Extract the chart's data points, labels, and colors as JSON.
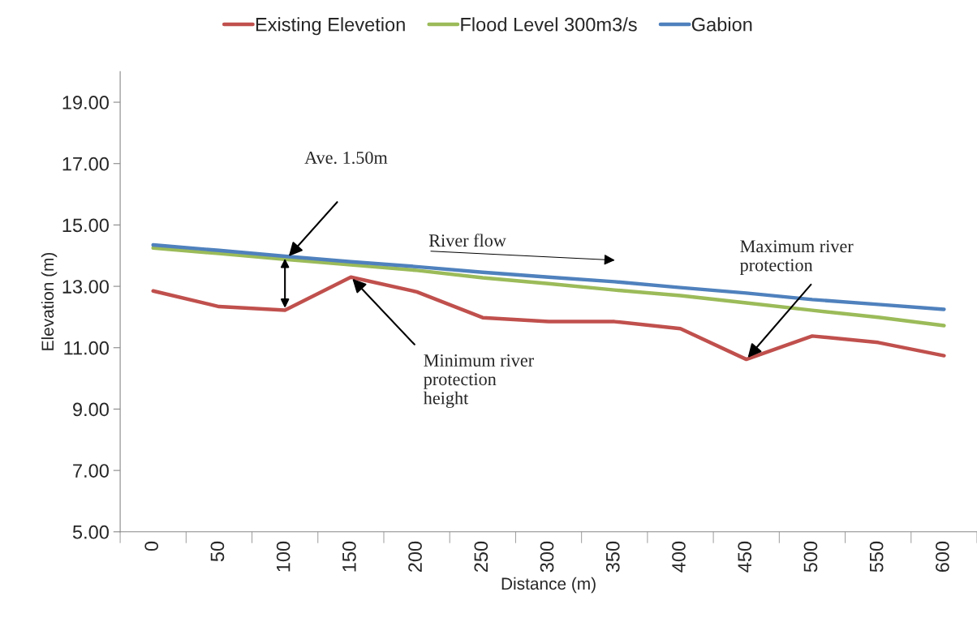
{
  "chart_data": {
    "type": "line",
    "xlabel": "Distance (m)",
    "ylabel": "Elevation (m)",
    "categories": [
      "0",
      "50",
      "100",
      "150",
      "200",
      "250",
      "300",
      "350",
      "400",
      "450",
      "500",
      "550",
      "600"
    ],
    "series": [
      {
        "name": "Existing Elevetion",
        "color": "#c0504d",
        "values": [
          12.85,
          12.34,
          12.22,
          13.3,
          12.82,
          11.98,
          11.85,
          11.85,
          11.62,
          10.62,
          11.38,
          11.17,
          10.74
        ]
      },
      {
        "name": "Flood Level 300m3/s",
        "color": "#9bbb59",
        "values": [
          14.25,
          14.07,
          13.88,
          13.7,
          13.52,
          13.28,
          13.09,
          12.88,
          12.7,
          12.46,
          12.22,
          11.99,
          11.72
        ]
      },
      {
        "name": "Gabion",
        "color": "#4f81bd",
        "values": [
          14.35,
          14.17,
          13.98,
          13.8,
          13.64,
          13.46,
          13.3,
          13.15,
          12.96,
          12.78,
          12.57,
          12.41,
          12.25
        ]
      }
    ],
    "ylim": [
      5,
      20
    ],
    "yticks": [
      {
        "value": 5,
        "label": "5.00"
      },
      {
        "value": 7,
        "label": "7.00"
      },
      {
        "value": 9,
        "label": "9.00"
      },
      {
        "value": 11,
        "label": "11.00"
      },
      {
        "value": 13,
        "label": "13.00"
      },
      {
        "value": 15,
        "label": "15.00"
      },
      {
        "value": 17,
        "label": "17.00"
      },
      {
        "value": 19,
        "label": "19.00"
      }
    ],
    "legend": "top",
    "grid": false,
    "marker": "none",
    "line_style": "solid",
    "annotations": [
      "Ave. 1.50m",
      "River flow",
      {
        "text": "Minimum river\nprotection\nheight",
        "x": "150",
        "y": 13.3
      },
      {
        "text": "Maximum river\nprotection",
        "x": "450",
        "y": 10.62
      }
    ]
  }
}
